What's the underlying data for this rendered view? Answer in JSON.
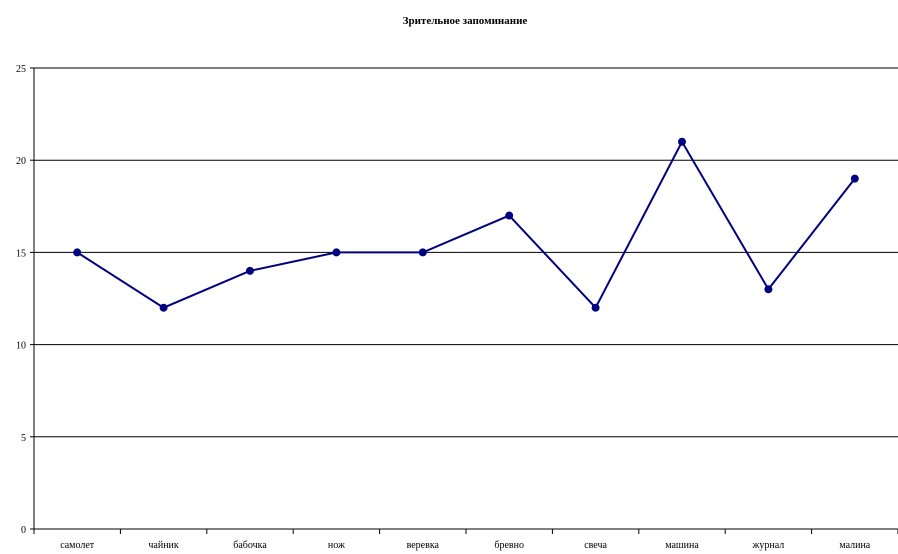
{
  "chart_data": {
    "type": "line",
    "title": "Зрительное запоминание",
    "xlabel": "",
    "ylabel": "",
    "categories": [
      "самолет",
      "чайник",
      "бабочка",
      "нож",
      "веревка",
      "бревно",
      "свеча",
      "машина",
      "журнал",
      "малина"
    ],
    "series": [
      {
        "values": [
          15,
          12,
          14,
          15,
          15,
          17,
          12,
          21,
          13,
          19
        ]
      }
    ],
    "ylim": [
      0,
      25
    ],
    "yticks": [
      0,
      5,
      10,
      15,
      20,
      25
    ],
    "grid": "horizontal",
    "legend": "none",
    "line_color": "#000080"
  }
}
